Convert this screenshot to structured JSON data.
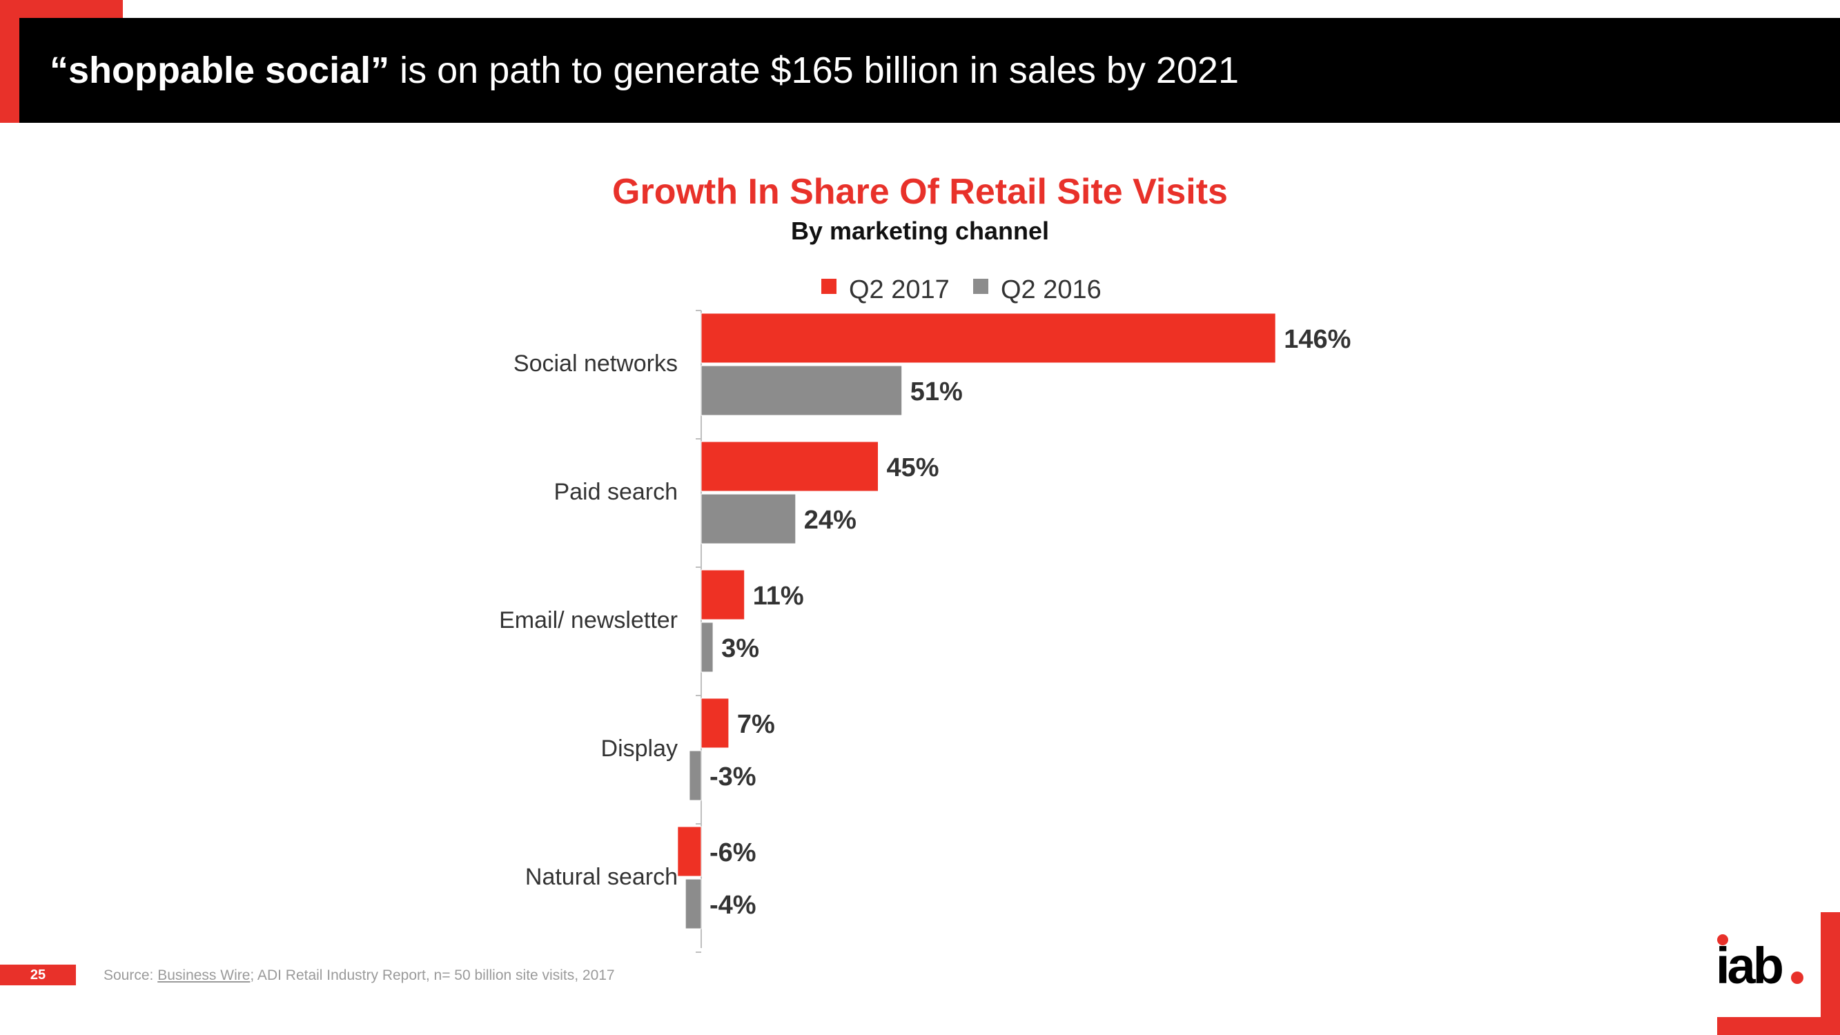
{
  "header": {
    "title_bold": "“shoppable social”",
    "title_rest": " is on path to generate $165 billion in sales by 2021"
  },
  "colors": {
    "accent": "#e8312a",
    "series_2017": "#ee3124",
    "series_2016": "#8c8c8c",
    "header_bg": "#000000"
  },
  "chart_data": {
    "type": "bar",
    "orientation": "horizontal",
    "title": "Growth In Share Of Retail Site Visits",
    "subtitle": "By marketing channel",
    "categories": [
      "Social networks",
      "Paid search",
      "Email/ newsletter",
      "Display",
      "Natural search"
    ],
    "series": [
      {
        "name": "Q2 2017",
        "values": [
          146,
          45,
          11,
          7,
          -6
        ],
        "labels": [
          "146%",
          "45%",
          "11%",
          "7%",
          "-6%"
        ]
      },
      {
        "name": "Q2 2016",
        "values": [
          51,
          24,
          3,
          -3,
          -4
        ],
        "labels": [
          "51%",
          "24%",
          "3%",
          "-3%",
          "-4%"
        ]
      }
    ],
    "legend_position": "top",
    "grid": false,
    "unit": "%"
  },
  "footer": {
    "page_number": "25",
    "source_prefix": "Source: ",
    "source_link": "Business Wire",
    "source_rest": "; ADI Retail Industry Report, n= 50 billion site visits, 2017"
  },
  "logo": {
    "text": "iab",
    "icon": "iab-logo"
  }
}
